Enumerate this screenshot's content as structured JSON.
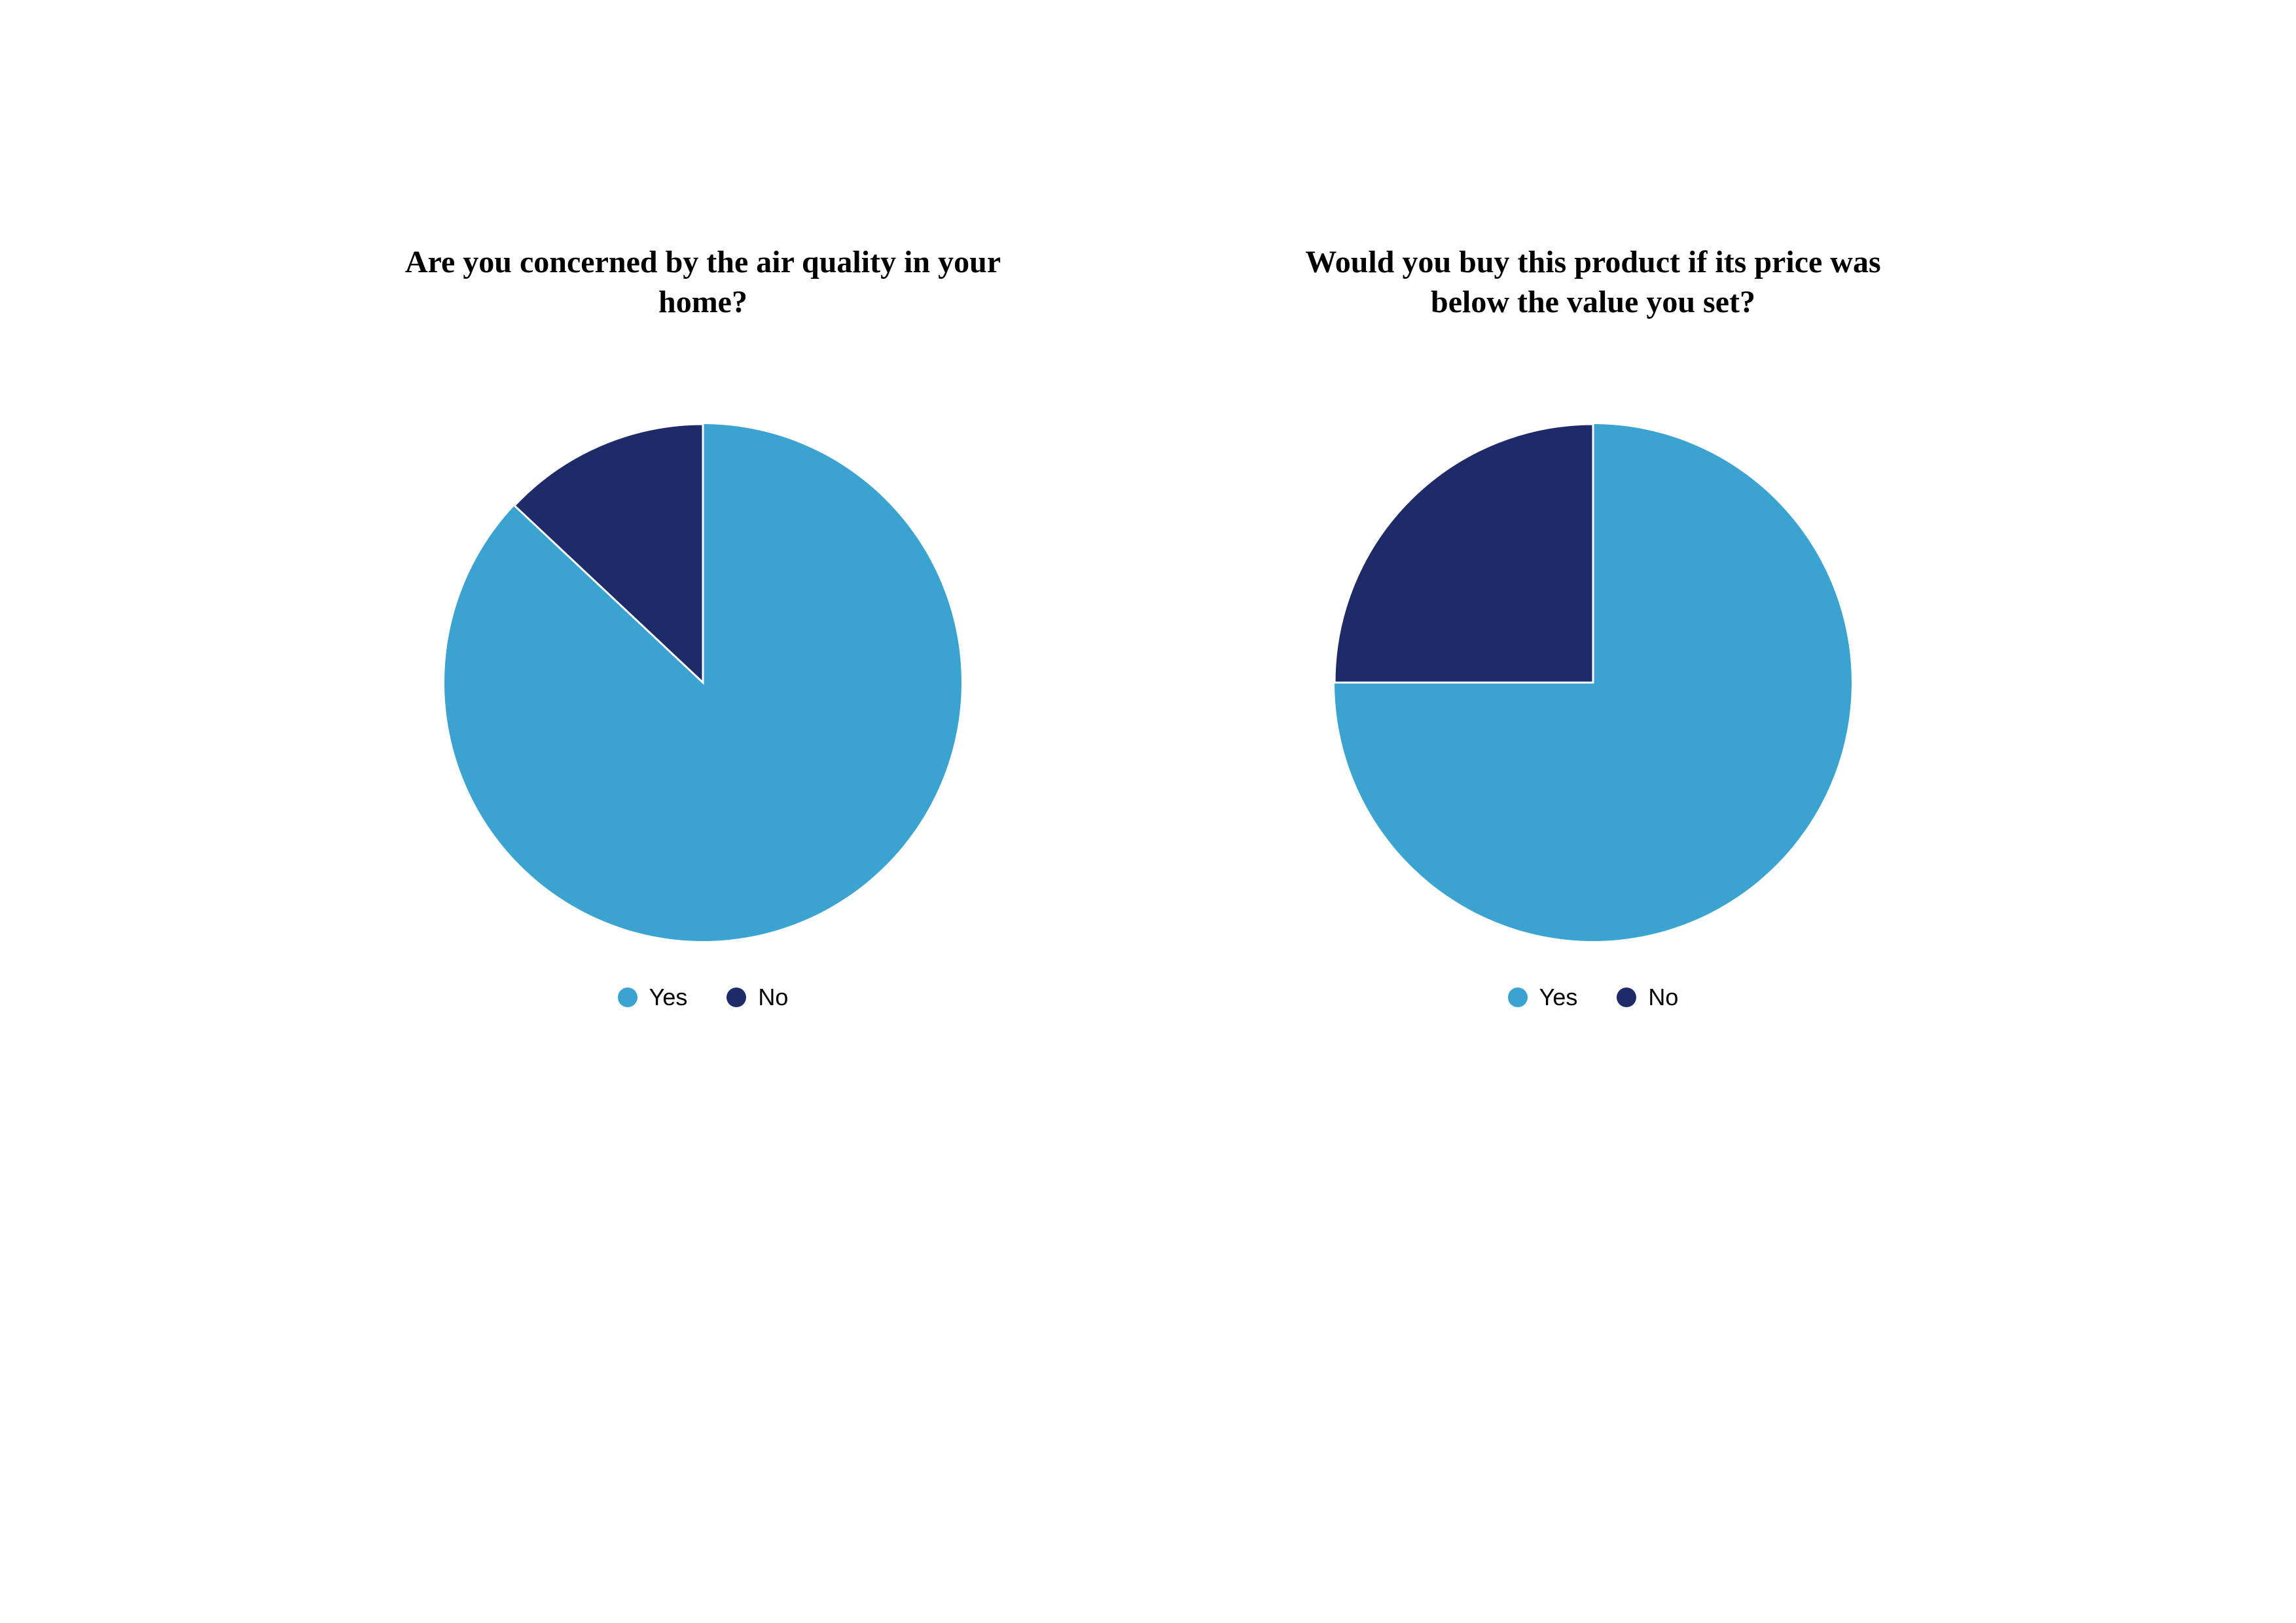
{
  "background_color": "#ffffff",
  "charts": [
    {
      "type": "pie",
      "title": "Are you concerned by  the air quality in your home?",
      "title_fontsize": 48,
      "title_fontweight": "bold",
      "title_color": "#000000",
      "start_angle_deg": -90,
      "slices": [
        {
          "label": "Yes",
          "value": 87,
          "color": "#3ba3d0"
        },
        {
          "label": "No",
          "value": 13,
          "color": "#1f2a68"
        }
      ],
      "stroke_color": "#ffffff",
      "stroke_width": 3,
      "radius": 395,
      "legend": {
        "position": "bottom",
        "items": [
          {
            "label": "Yes",
            "color": "#3ba3d0"
          },
          {
            "label": "No",
            "color": "#1f2a68"
          }
        ],
        "label_fontsize": 36,
        "label_color": "#000000",
        "swatch_shape": "circle",
        "swatch_size": 30
      }
    },
    {
      "type": "pie",
      "title": "Would you buy this product if its price was below the value you set?",
      "title_fontsize": 48,
      "title_fontweight": "bold",
      "title_color": "#000000",
      "start_angle_deg": -90,
      "slices": [
        {
          "label": "Yes",
          "value": 75,
          "color": "#3ba3d0"
        },
        {
          "label": "No",
          "value": 25,
          "color": "#1f2a68"
        }
      ],
      "stroke_color": "#ffffff",
      "stroke_width": 3,
      "radius": 395,
      "legend": {
        "position": "bottom",
        "items": [
          {
            "label": "Yes",
            "color": "#3ba3d0"
          },
          {
            "label": "No",
            "color": "#1f2a68"
          }
        ],
        "label_fontsize": 36,
        "label_color": "#000000",
        "swatch_shape": "circle",
        "swatch_size": 30
      }
    }
  ]
}
